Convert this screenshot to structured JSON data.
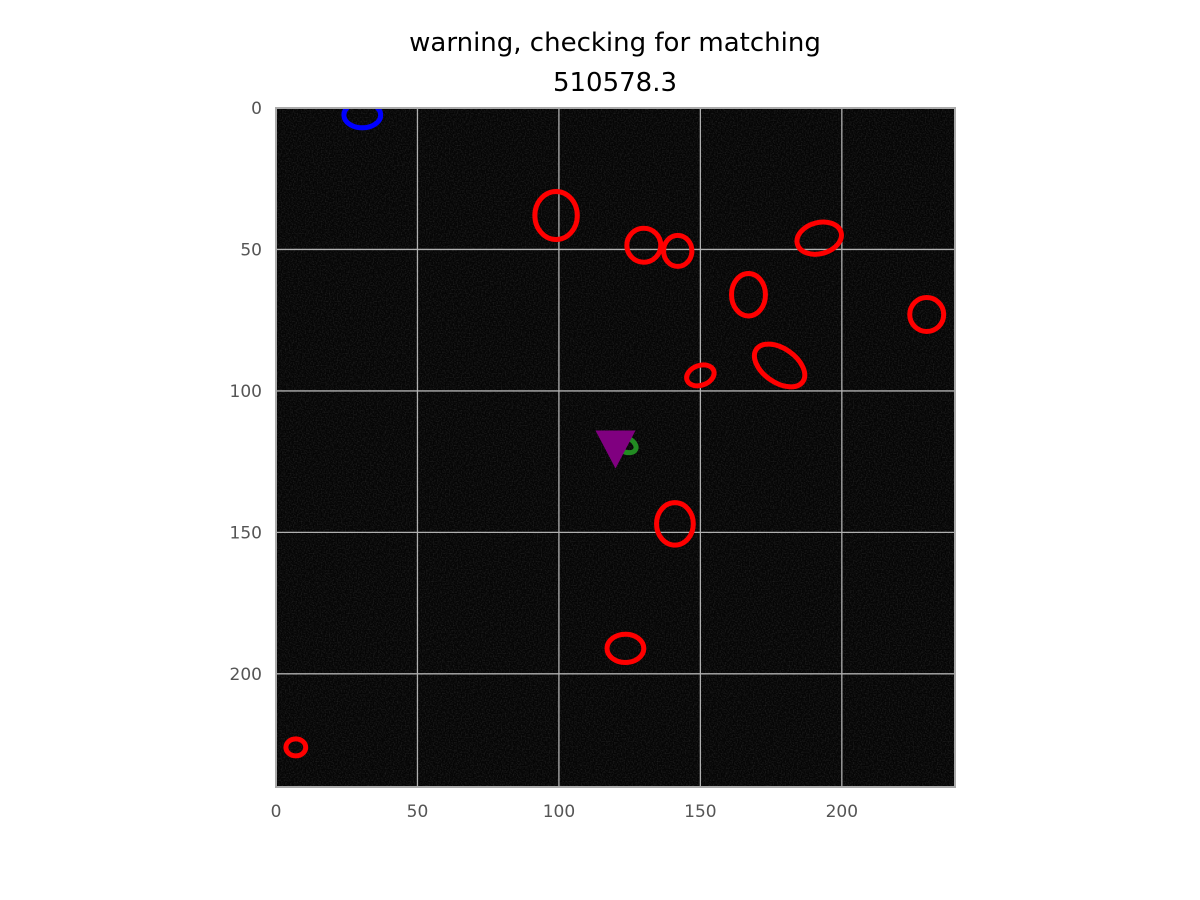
{
  "chart_data": {
    "type": "scatter",
    "title": "warning, checking for matching",
    "subtitle": "510578.3",
    "xlabel": "",
    "ylabel": "",
    "xlim": [
      0,
      240
    ],
    "ylim": [
      240,
      0
    ],
    "y_inverted": true,
    "grid": true,
    "x_ticks": [
      "0",
      "50",
      "100",
      "150",
      "200"
    ],
    "y_ticks": [
      "0",
      "50",
      "100",
      "150",
      "200"
    ],
    "background": "noisy dark grayscale image",
    "colors": {
      "red": "#ff0000",
      "blue": "#0000ff",
      "green": "#228b22",
      "purple": "#800080",
      "grid": "#b0b0b0",
      "frame": "#aaaaaa"
    },
    "ellipses": [
      {
        "color": "blue",
        "cx": 30.5,
        "cy": 2.5,
        "w": 13,
        "h": 9,
        "angle": 0
      },
      {
        "color": "red",
        "cx": 99,
        "cy": 38,
        "w": 15,
        "h": 17,
        "angle": 0
      },
      {
        "color": "red",
        "cx": 130,
        "cy": 48.5,
        "w": 12,
        "h": 12,
        "angle": 0
      },
      {
        "color": "red",
        "cx": 142,
        "cy": 50.5,
        "w": 10,
        "h": 11,
        "angle": 0
      },
      {
        "color": "red",
        "cx": 192,
        "cy": 46,
        "w": 16,
        "h": 11,
        "angle": -15
      },
      {
        "color": "red",
        "cx": 167,
        "cy": 66,
        "w": 12,
        "h": 15,
        "angle": 0
      },
      {
        "color": "red",
        "cx": 230,
        "cy": 73,
        "w": 12,
        "h": 12,
        "angle": 0
      },
      {
        "color": "red",
        "cx": 178,
        "cy": 91,
        "w": 20,
        "h": 12,
        "angle": 35
      },
      {
        "color": "red",
        "cx": 150,
        "cy": 94.5,
        "w": 10,
        "h": 7,
        "angle": -20
      },
      {
        "color": "green",
        "cx": 123.5,
        "cy": 119,
        "w": 8,
        "h": 5,
        "angle": 25
      },
      {
        "color": "red",
        "cx": 141,
        "cy": 147,
        "w": 13,
        "h": 15,
        "angle": 0
      },
      {
        "color": "red",
        "cx": 123.5,
        "cy": 191,
        "w": 13,
        "h": 10,
        "angle": 0
      },
      {
        "color": "red",
        "cx": 7,
        "cy": 226,
        "w": 7,
        "h": 6,
        "angle": 0
      }
    ],
    "markers": [
      {
        "color": "purple",
        "shape": "triangle-down",
        "x": 120,
        "y": 120
      }
    ]
  }
}
